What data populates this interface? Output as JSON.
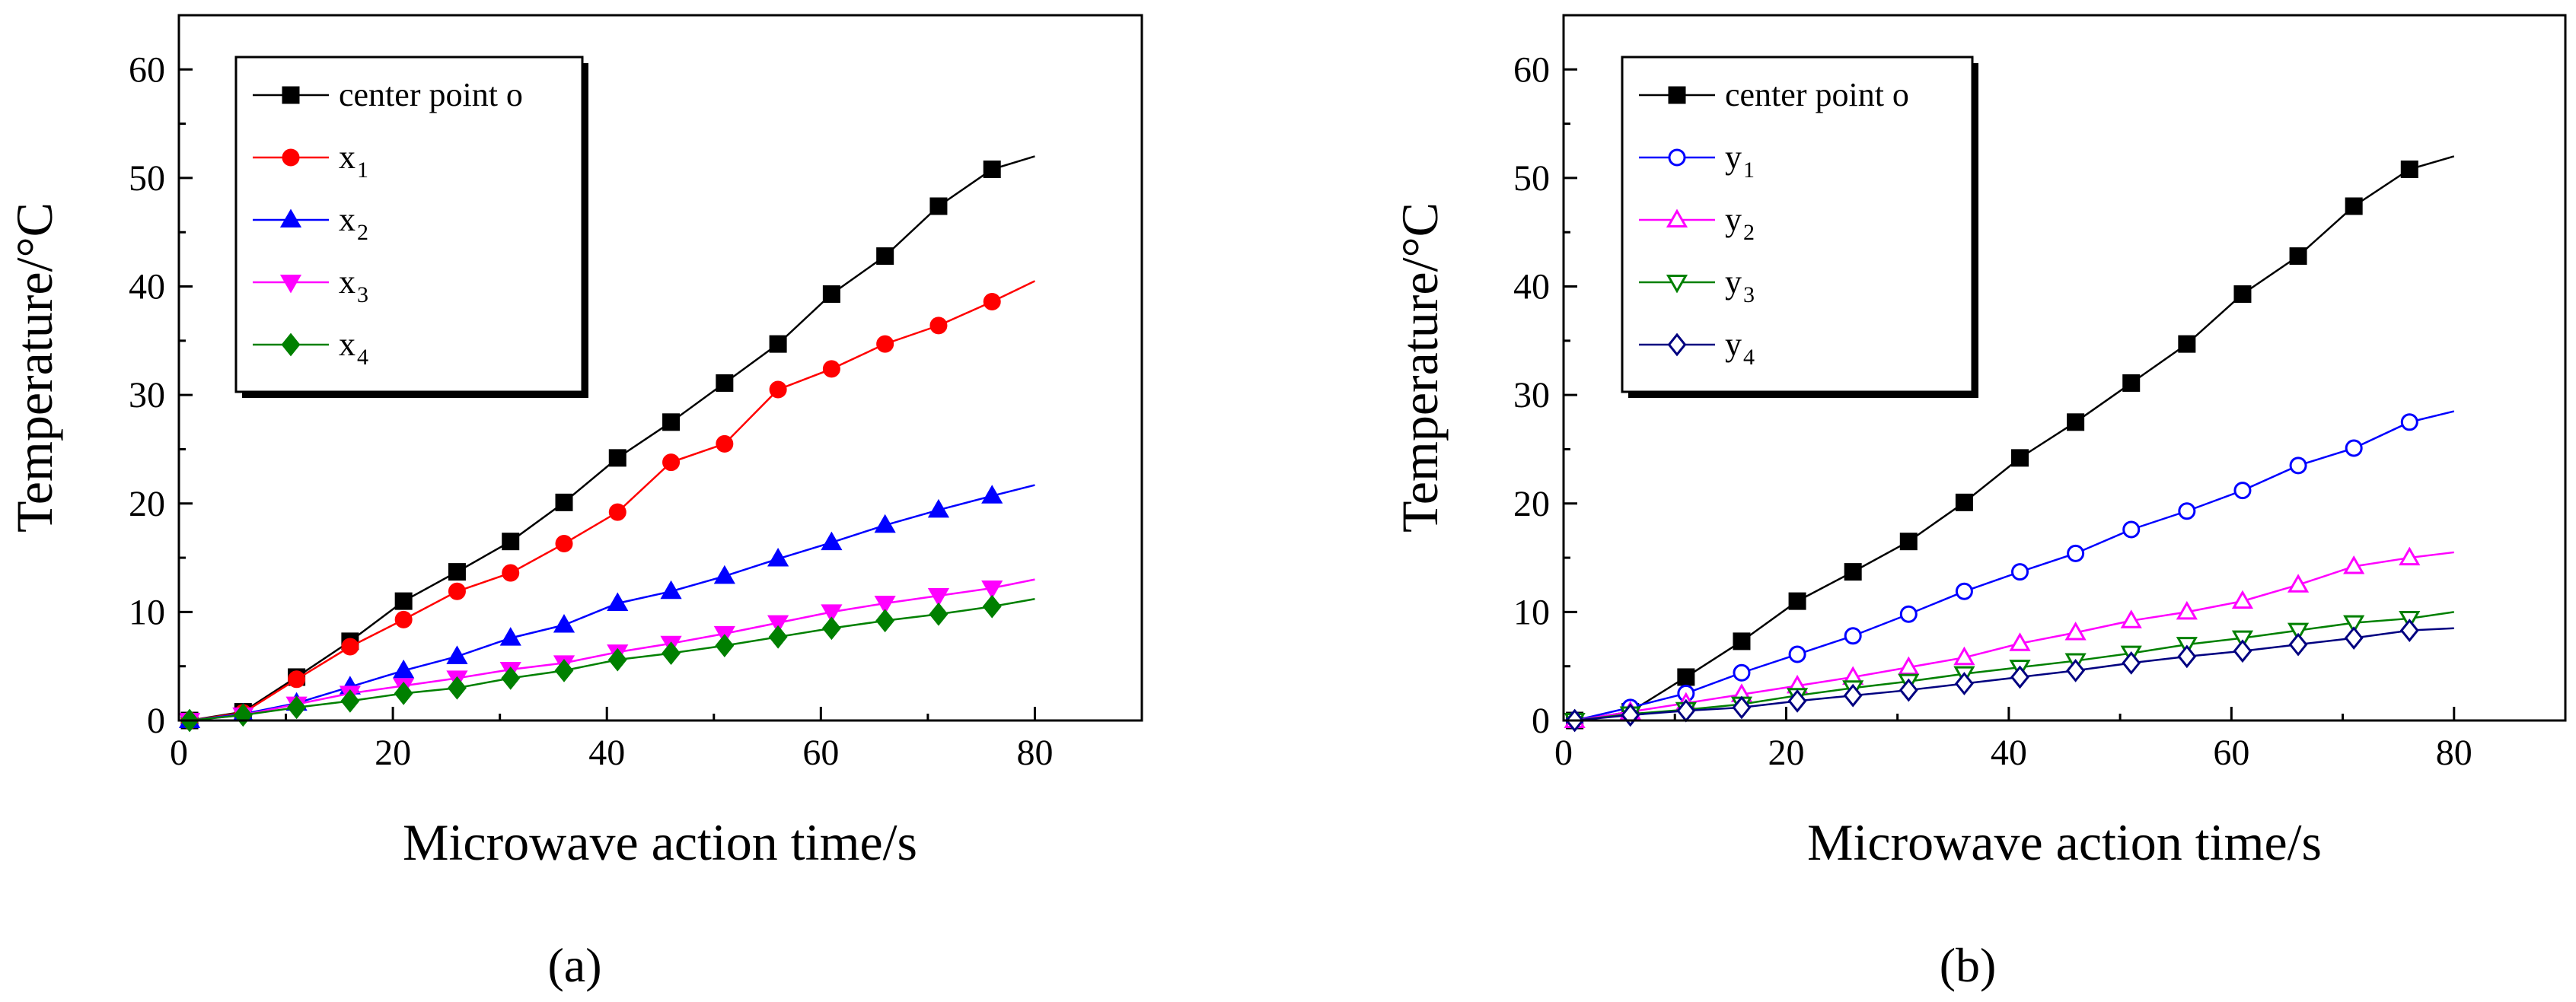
{
  "chart_data": [
    {
      "type": "line",
      "panel_label": "(a)",
      "xlabel": "Microwave action time/s",
      "ylabel": "Temperature/°C",
      "xlim": [
        0,
        90
      ],
      "ylim": [
        0,
        65
      ],
      "xticks": [
        "0",
        "20",
        "40",
        "60",
        "80"
      ],
      "yticks": [
        "0",
        "10",
        "20",
        "30",
        "40",
        "50",
        "60"
      ],
      "legend_position": "top-left",
      "x": [
        1,
        6,
        11,
        16,
        21,
        26,
        31,
        36,
        41,
        46,
        51,
        56,
        61,
        66,
        71,
        76
      ],
      "series": [
        {
          "name": "center point o",
          "sub": "",
          "color": "#000000",
          "marker": "square",
          "filled": true,
          "values": [
            0,
            0.8,
            4,
            7.3,
            11,
            13.7,
            16.5,
            20.1,
            24.2,
            27.5,
            31.1,
            34.7,
            39.3,
            42.8,
            47.4,
            50.8
          ],
          "end": [
            80,
            52
          ]
        },
        {
          "name": "x",
          "sub": "1",
          "color": "#ff0000",
          "marker": "circle",
          "filled": true,
          "values": [
            0,
            0.7,
            3.8,
            6.8,
            9.3,
            11.9,
            13.6,
            16.3,
            19.2,
            23.8,
            25.5,
            30.5,
            32.4,
            34.7,
            36.4,
            38.6
          ],
          "end": [
            80,
            40.5
          ]
        },
        {
          "name": "x",
          "sub": "2",
          "color": "#0000ff",
          "marker": "triangle-up",
          "filled": true,
          "values": [
            0,
            0.6,
            1.6,
            3.1,
            4.6,
            5.9,
            7.6,
            8.8,
            10.8,
            11.9,
            13.3,
            14.9,
            16.4,
            18,
            19.4,
            20.7
          ],
          "end": [
            80,
            21.7
          ]
        },
        {
          "name": "x",
          "sub": "3",
          "color": "#ff00ff",
          "marker": "triangle-down",
          "filled": true,
          "values": [
            0,
            0.5,
            1.5,
            2.5,
            3.2,
            3.9,
            4.7,
            5.3,
            6.3,
            7.1,
            8,
            9,
            10,
            10.8,
            11.5,
            12.2
          ],
          "end": [
            80,
            13
          ]
        },
        {
          "name": "x",
          "sub": "4",
          "color": "#008000",
          "marker": "diamond",
          "filled": true,
          "values": [
            0,
            0.5,
            1.2,
            1.8,
            2.5,
            3,
            3.9,
            4.6,
            5.6,
            6.2,
            6.9,
            7.7,
            8.5,
            9.2,
            9.8,
            10.5
          ],
          "end": [
            80,
            11.2
          ]
        }
      ]
    },
    {
      "type": "line",
      "panel_label": "(b)",
      "xlabel": "Microwave action time/s",
      "ylabel": "Temperature/°C",
      "xlim": [
        0,
        90
      ],
      "ylim": [
        0,
        65
      ],
      "xticks": [
        "0",
        "20",
        "40",
        "60",
        "80"
      ],
      "yticks": [
        "0",
        "10",
        "20",
        "30",
        "40",
        "50",
        "60"
      ],
      "legend_position": "top-left",
      "x": [
        1,
        6,
        11,
        16,
        21,
        26,
        31,
        36,
        41,
        46,
        51,
        56,
        61,
        66,
        71,
        76
      ],
      "series": [
        {
          "name": "center point o",
          "sub": "",
          "color": "#000000",
          "marker": "square",
          "filled": true,
          "values": [
            0,
            0.8,
            4,
            7.3,
            11,
            13.7,
            16.5,
            20.1,
            24.2,
            27.5,
            31.1,
            34.7,
            39.3,
            42.8,
            47.4,
            50.8
          ],
          "end": [
            80,
            52
          ]
        },
        {
          "name": "y",
          "sub": "1",
          "color": "#0000ff",
          "marker": "circle",
          "filled": false,
          "values": [
            0,
            1.2,
            2.5,
            4.4,
            6.1,
            7.8,
            9.8,
            11.9,
            13.7,
            15.4,
            17.6,
            19.3,
            21.2,
            23.5,
            25.1,
            27.5
          ],
          "end": [
            80,
            28.5
          ]
        },
        {
          "name": "y",
          "sub": "2",
          "color": "#ff00ff",
          "marker": "triangle-up",
          "filled": false,
          "values": [
            0,
            0.8,
            1.6,
            2.4,
            3.2,
            4,
            4.9,
            5.8,
            7.1,
            8.1,
            9.2,
            10,
            11,
            12.5,
            14.2,
            15
          ],
          "end": [
            80,
            15.5
          ]
        },
        {
          "name": "y",
          "sub": "3",
          "color": "#008000",
          "marker": "triangle-down",
          "filled": false,
          "values": [
            0,
            0.6,
            1,
            1.5,
            2.3,
            3,
            3.6,
            4.3,
            4.9,
            5.5,
            6.2,
            7,
            7.6,
            8.3,
            9,
            9.4
          ],
          "end": [
            80,
            10
          ]
        },
        {
          "name": "y",
          "sub": "4",
          "color": "#000080",
          "marker": "diamond",
          "filled": false,
          "values": [
            0,
            0.5,
            0.9,
            1.2,
            1.8,
            2.3,
            2.8,
            3.4,
            4,
            4.6,
            5.3,
            5.9,
            6.4,
            7,
            7.6,
            8.3
          ],
          "end": [
            80,
            8.5
          ]
        }
      ]
    }
  ]
}
